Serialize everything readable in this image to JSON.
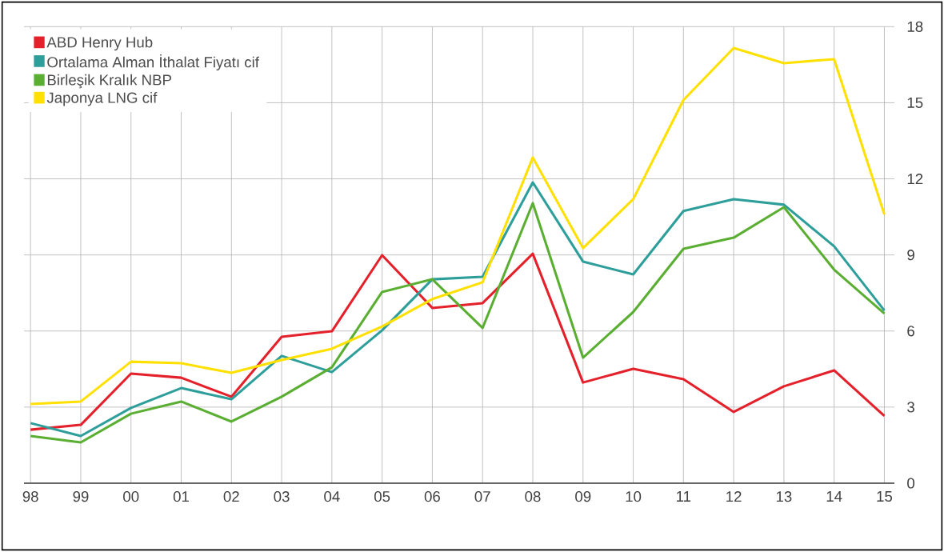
{
  "chart_data": {
    "type": "line",
    "categories": [
      "98",
      "99",
      "00",
      "01",
      "02",
      "03",
      "04",
      "05",
      "06",
      "07",
      "08",
      "09",
      "10",
      "11",
      "12",
      "13",
      "14",
      "15"
    ],
    "series": [
      {
        "name": "ABD Henry Hub",
        "color": "#e4212b",
        "values": [
          2.11,
          2.3,
          4.32,
          4.16,
          3.41,
          5.77,
          5.99,
          8.99,
          6.91,
          7.1,
          9.05,
          3.97,
          4.51,
          4.1,
          2.81,
          3.82,
          4.45,
          2.65
        ]
      },
      {
        "name": "Ortalama Alman İthalat Fiyatı cif",
        "color": "#2e9e9b",
        "values": [
          2.37,
          1.86,
          2.97,
          3.75,
          3.31,
          5.02,
          4.38,
          6.03,
          8.04,
          8.14,
          11.86,
          8.74,
          8.23,
          10.73,
          11.2,
          10.98,
          9.34,
          6.81
        ]
      },
      {
        "name": "Birleşik Kralık NBP",
        "color": "#5aae32",
        "values": [
          1.86,
          1.61,
          2.74,
          3.22,
          2.43,
          3.41,
          4.57,
          7.54,
          8.04,
          6.12,
          11.04,
          4.95,
          6.75,
          9.24,
          9.68,
          10.88,
          8.42,
          6.69
        ]
      },
      {
        "name": "Japonya LNG cif",
        "color": "#ffe000",
        "values": [
          3.12,
          3.22,
          4.79,
          4.73,
          4.35,
          4.86,
          5.3,
          6.18,
          7.26,
          7.92,
          12.84,
          9.27,
          11.2,
          15.11,
          17.16,
          16.56,
          16.72,
          10.6
        ]
      }
    ],
    "ylim": [
      0,
      18
    ],
    "yticks": [
      0,
      3,
      6,
      9,
      12,
      15,
      18
    ],
    "grid": true,
    "legend": "top left",
    "marker": "none",
    "line_style": "solid"
  }
}
